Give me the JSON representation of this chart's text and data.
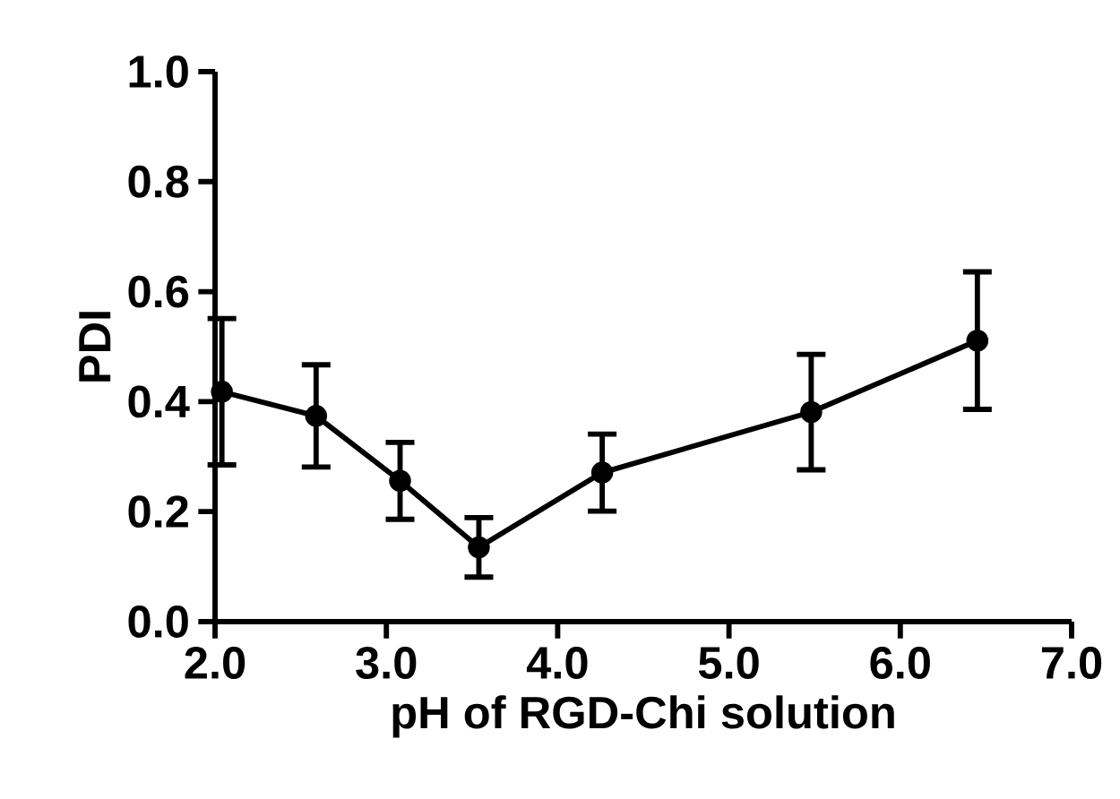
{
  "chart_data": {
    "type": "line",
    "xlabel": "pH of RGD-Chi solution",
    "ylabel": "PDI",
    "x": [
      2.04,
      2.59,
      3.08,
      3.54,
      4.26,
      5.48,
      6.45
    ],
    "values": [
      0.418,
      0.374,
      0.256,
      0.135,
      0.271,
      0.381,
      0.511
    ],
    "errors": [
      0.133,
      0.093,
      0.07,
      0.054,
      0.07,
      0.105,
      0.125
    ],
    "color": "#000000",
    "marker": "circle",
    "line_style": "solid",
    "grid": false,
    "xlim": [
      2,
      7
    ],
    "ylim": [
      0,
      1
    ],
    "xticks": [
      {
        "value": 2,
        "label": "2.0"
      },
      {
        "value": 3,
        "label": "3.0"
      },
      {
        "value": 4,
        "label": "4.0"
      },
      {
        "value": 5,
        "label": "5.0"
      },
      {
        "value": 6,
        "label": "6.0"
      },
      {
        "value": 7,
        "label": "7.0"
      }
    ],
    "yticks": [
      {
        "value": 0,
        "label": "0.0"
      },
      {
        "value": 0.2,
        "label": "0.2"
      },
      {
        "value": 0.4,
        "label": "0.4"
      },
      {
        "value": 0.6,
        "label": "0.6"
      },
      {
        "value": 0.8,
        "label": "0.8"
      },
      {
        "value": 1,
        "label": "1.0"
      }
    ]
  }
}
